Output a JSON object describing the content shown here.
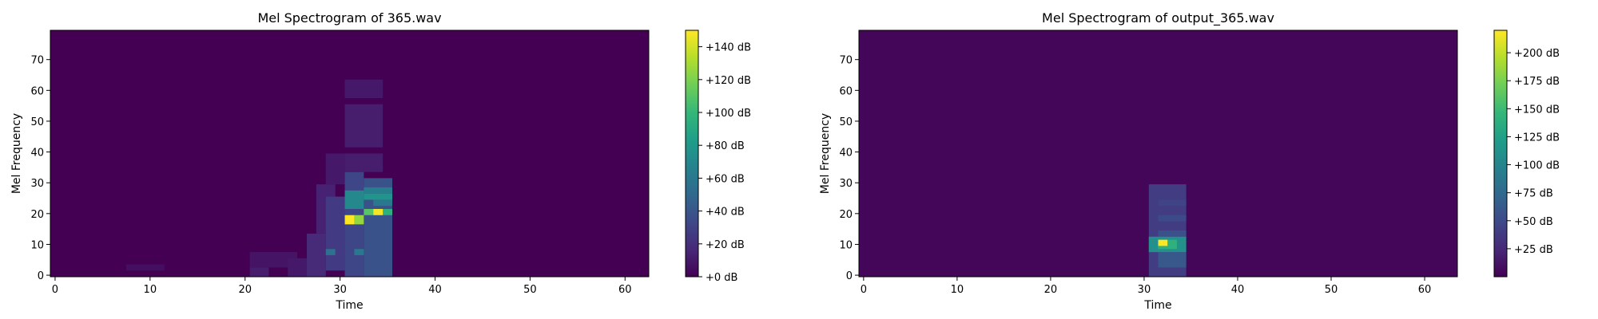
{
  "colors": {
    "background": "#440154",
    "colormap": [
      "#440154",
      "#482878",
      "#3e4989",
      "#31688e",
      "#26828e",
      "#1f9e89",
      "#35b779",
      "#6ece58",
      "#b5de2b",
      "#fde725"
    ]
  },
  "chart_data": [
    {
      "type": "heatmap",
      "title": "Mel Spectrogram of 365.wav",
      "xlabel": "Time",
      "ylabel": "Mel Frequency",
      "xlim": [
        -0.5,
        62.5
      ],
      "ylim": [
        -0.5,
        79.5
      ],
      "xticks": [
        0,
        10,
        20,
        30,
        40,
        50,
        60
      ],
      "xtick_labels": [
        "0",
        "10",
        "20",
        "30",
        "40",
        "50",
        "60"
      ],
      "yticks": [
        0,
        10,
        20,
        30,
        40,
        50,
        60,
        70
      ],
      "ytick_labels": [
        "0",
        "10",
        "20",
        "30",
        "40",
        "50",
        "60",
        "70"
      ],
      "colorbar": {
        "vmin": 0,
        "vmax": 150,
        "ticks": [
          0,
          20,
          40,
          60,
          80,
          100,
          120,
          140
        ],
        "tick_labels": [
          "+0 dB",
          "+20 dB",
          "+40 dB",
          "+60 dB",
          "+80 dB",
          "+100 dB",
          "+120 dB",
          "+140 dB"
        ]
      },
      "background_db": 0,
      "regions": [
        {
          "t": [
            8,
            12
          ],
          "f": [
            2,
            4
          ],
          "db": 6
        },
        {
          "t": [
            21,
            23
          ],
          "f": [
            0,
            3
          ],
          "db": 12
        },
        {
          "t": [
            21,
            26
          ],
          "f": [
            3,
            8
          ],
          "db": 8
        },
        {
          "t": [
            25,
            27
          ],
          "f": [
            0,
            6
          ],
          "db": 10
        },
        {
          "t": [
            27,
            29
          ],
          "f": [
            0,
            14
          ],
          "db": 18
        },
        {
          "t": [
            28,
            30
          ],
          "f": [
            14,
            30
          ],
          "db": 14
        },
        {
          "t": [
            29,
            31
          ],
          "f": [
            30,
            40
          ],
          "db": 10
        },
        {
          "t": [
            29,
            31
          ],
          "f": [
            2,
            26
          ],
          "db": 26
        },
        {
          "t": [
            31,
            33
          ],
          "f": [
            0,
            34
          ],
          "db": 32
        },
        {
          "t": [
            31,
            35
          ],
          "f": [
            34,
            40
          ],
          "db": 12
        },
        {
          "t": [
            31,
            35
          ],
          "f": [
            42,
            56
          ],
          "db": 12
        },
        {
          "t": [
            31,
            35
          ],
          "f": [
            58,
            64
          ],
          "db": 10
        },
        {
          "t": [
            33,
            36
          ],
          "f": [
            0,
            32
          ],
          "db": 38
        },
        {
          "t": [
            29,
            30
          ],
          "f": [
            7,
            9
          ],
          "db": 55
        },
        {
          "t": [
            32,
            33
          ],
          "f": [
            7,
            9
          ],
          "db": 60
        },
        {
          "t": [
            31,
            33
          ],
          "f": [
            22,
            28
          ],
          "db": 70
        },
        {
          "t": [
            33,
            36
          ],
          "f": [
            25,
            27
          ],
          "db": 78
        },
        {
          "t": [
            33,
            36
          ],
          "f": [
            27,
            29
          ],
          "db": 65
        },
        {
          "t": [
            34,
            36
          ],
          "f": [
            23,
            25
          ],
          "db": 60
        },
        {
          "t": [
            34,
            36
          ],
          "f": [
            20,
            22
          ],
          "db": 95
        },
        {
          "t": [
            33,
            34
          ],
          "f": [
            20,
            22
          ],
          "db": 110
        },
        {
          "t": [
            31,
            32
          ],
          "f": [
            17,
            20
          ],
          "db": 150
        },
        {
          "t": [
            32,
            33
          ],
          "f": [
            17,
            20
          ],
          "db": 125
        },
        {
          "t": [
            34,
            35
          ],
          "f": [
            20,
            22
          ],
          "db": 148
        }
      ]
    },
    {
      "type": "heatmap",
      "title": "Mel Spectrogram of output_365.wav",
      "xlabel": "Time",
      "ylabel": "Mel Frequency",
      "xlim": [
        -0.5,
        63.5
      ],
      "ylim": [
        -0.5,
        79.5
      ],
      "xticks": [
        0,
        10,
        20,
        30,
        40,
        50,
        60
      ],
      "xtick_labels": [
        "0",
        "10",
        "20",
        "30",
        "40",
        "50",
        "60"
      ],
      "yticks": [
        0,
        10,
        20,
        30,
        40,
        50,
        60,
        70
      ],
      "ytick_labels": [
        "0",
        "10",
        "20",
        "30",
        "40",
        "50",
        "60",
        "70"
      ],
      "colorbar": {
        "vmin": 0,
        "vmax": 220,
        "ticks": [
          25,
          50,
          75,
          100,
          125,
          150,
          175,
          200
        ],
        "tick_labels": [
          "+25 dB",
          "+50 dB",
          "+75 dB",
          "+100 dB",
          "+125 dB",
          "+150 dB",
          "+175 dB",
          "+200 dB"
        ]
      },
      "background_db": 3,
      "regions": [
        {
          "t": [
            31,
            35
          ],
          "f": [
            0,
            30
          ],
          "db": 40
        },
        {
          "t": [
            32,
            35
          ],
          "f": [
            3,
            8
          ],
          "db": 60
        },
        {
          "t": [
            32,
            35
          ],
          "f": [
            13,
            15
          ],
          "db": 55
        },
        {
          "t": [
            32,
            35
          ],
          "f": [
            18,
            20
          ],
          "db": 50
        },
        {
          "t": [
            32,
            35
          ],
          "f": [
            23,
            25
          ],
          "db": 45
        },
        {
          "t": [
            31,
            35
          ],
          "f": [
            8,
            13
          ],
          "db": 110
        },
        {
          "t": [
            32,
            34
          ],
          "f": [
            9,
            12
          ],
          "db": 140
        },
        {
          "t": [
            32,
            33
          ],
          "f": [
            10,
            12
          ],
          "db": 220
        }
      ]
    }
  ]
}
